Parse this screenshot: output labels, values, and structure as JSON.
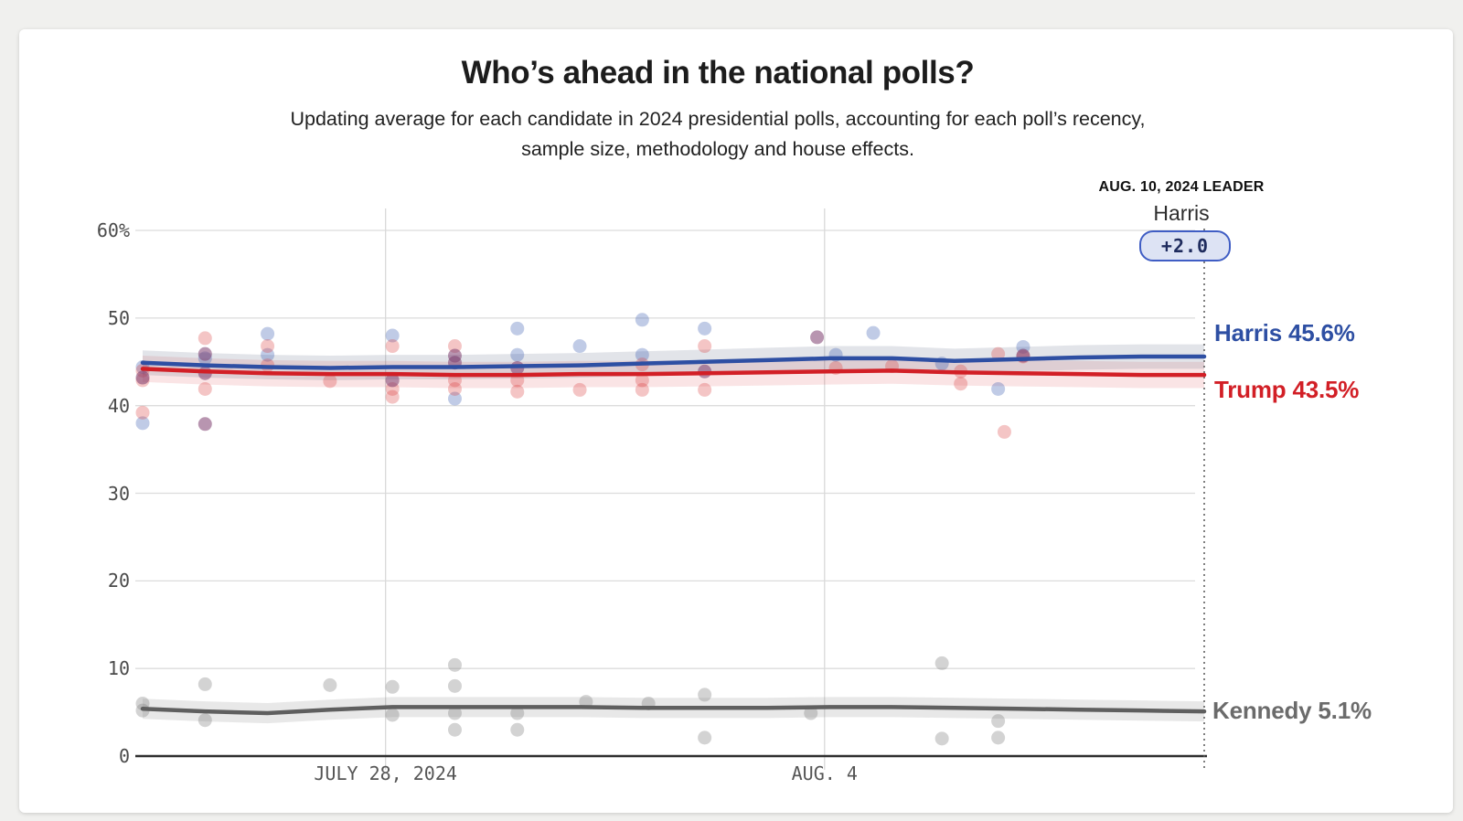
{
  "page": {
    "background_color": "#f0f0ee",
    "card_color": "#ffffff"
  },
  "header": {
    "title": "Who’s ahead in the national polls?",
    "subtitle": "Updating average for each candidate in 2024 presidential polls, accounting for each poll’s recency,\nsample size, methodology and house effects."
  },
  "leader": {
    "heading": "AUG. 10, 2024 LEADER",
    "name": "Harris",
    "margin_badge": "+2.0",
    "badge_border_color": "#3f5dc4",
    "badge_fill_color": "#dde3f4"
  },
  "chart_data": {
    "type": "line",
    "title": "Who’s ahead in the national polls?",
    "x_axis": {
      "start_date": "2024-07-24",
      "end_date": "2024-08-10",
      "days_span": 17,
      "tick_labels": [
        "JULY 28, 2024",
        "AUG. 4"
      ],
      "tick_days": [
        3.89,
        10.92
      ],
      "grid": true
    },
    "y_axis": {
      "unit": "%",
      "tick_labels": [
        "60%",
        "50",
        "40",
        "30",
        "20",
        "10",
        "0"
      ],
      "tick_values": [
        60,
        50,
        40,
        30,
        20,
        10,
        0
      ],
      "range": [
        0,
        62
      ],
      "grid": true
    },
    "annotation": {
      "dotted_line_day": 17,
      "dotted_line_date": "2024-08-10"
    },
    "series": [
      {
        "name": "Harris",
        "color": "#2e4fa3",
        "band_color": "rgba(96,106,134,0.18)",
        "band_delta": 1.4,
        "end_value": 45.6,
        "end_label": "Harris 45.6%",
        "days": [
          0,
          1,
          2,
          3,
          4,
          5,
          6,
          7,
          8,
          9,
          10,
          11,
          12,
          13,
          14,
          15,
          16,
          17
        ],
        "values": [
          44.9,
          44.6,
          44.4,
          44.3,
          44.4,
          44.4,
          44.5,
          44.6,
          44.8,
          45.0,
          45.2,
          45.4,
          45.4,
          45.1,
          45.3,
          45.5,
          45.6,
          45.6
        ]
      },
      {
        "name": "Trump",
        "color": "#d21f26",
        "band_color": "rgba(214,31,38,0.12)",
        "band_delta": 1.5,
        "end_value": 43.5,
        "end_label": "Trump 43.5%",
        "days": [
          0,
          1,
          2,
          3,
          4,
          5,
          6,
          7,
          8,
          9,
          10,
          11,
          12,
          13,
          14,
          15,
          16,
          17
        ],
        "values": [
          44.2,
          43.9,
          43.7,
          43.6,
          43.6,
          43.5,
          43.5,
          43.6,
          43.6,
          43.7,
          43.8,
          43.9,
          44.0,
          43.8,
          43.7,
          43.6,
          43.5,
          43.5
        ]
      },
      {
        "name": "Kennedy",
        "color": "#5f5f5f",
        "band_color": "rgba(110,110,110,0.16)",
        "band_delta": 1.15,
        "end_value": 5.1,
        "end_label": "Kennedy 5.1%",
        "days": [
          0,
          1,
          2,
          3,
          4,
          5,
          6,
          7,
          8,
          9,
          10,
          11,
          12,
          13,
          14,
          15,
          16,
          17
        ],
        "values": [
          5.4,
          5.1,
          4.9,
          5.3,
          5.6,
          5.6,
          5.6,
          5.6,
          5.5,
          5.5,
          5.5,
          5.6,
          5.6,
          5.5,
          5.4,
          5.3,
          5.2,
          5.1
        ]
      }
    ],
    "poll_scatter": {
      "blue": [
        [
          0,
          44.4
        ],
        [
          0,
          38.0
        ],
        [
          1,
          45.4
        ],
        [
          2,
          48.2
        ],
        [
          2,
          45.8
        ],
        [
          4,
          48.0
        ],
        [
          5,
          40.8
        ],
        [
          6,
          48.8
        ],
        [
          6,
          45.8
        ],
        [
          7,
          46.8
        ],
        [
          8,
          49.8
        ],
        [
          8,
          45.8
        ],
        [
          9,
          48.8
        ],
        [
          11.1,
          45.8
        ],
        [
          11.7,
          48.3
        ],
        [
          12.8,
          44.8
        ],
        [
          13.7,
          41.9
        ],
        [
          14.1,
          46.7
        ]
      ],
      "red": [
        [
          0,
          44.0
        ],
        [
          0,
          42.9
        ],
        [
          0,
          39.2
        ],
        [
          1,
          47.7
        ],
        [
          1,
          41.9
        ],
        [
          2,
          46.8
        ],
        [
          2,
          44.6
        ],
        [
          3,
          42.8
        ],
        [
          4,
          46.8
        ],
        [
          4,
          41.9
        ],
        [
          4,
          41.0
        ],
        [
          5,
          46.8
        ],
        [
          5,
          42.9
        ],
        [
          5,
          41.9
        ],
        [
          6,
          42.9
        ],
        [
          6,
          41.6
        ],
        [
          7,
          41.8
        ],
        [
          8,
          44.7
        ],
        [
          8,
          42.9
        ],
        [
          8,
          41.8
        ],
        [
          9,
          46.8
        ],
        [
          9,
          41.8
        ],
        [
          11.1,
          44.3
        ],
        [
          12,
          44.5
        ],
        [
          13.1,
          43.9
        ],
        [
          13.1,
          42.5
        ],
        [
          13.7,
          45.9
        ],
        [
          14.1,
          45.6
        ],
        [
          13.8,
          37.0
        ]
      ],
      "overlap": [
        [
          0,
          43.2
        ],
        [
          1,
          45.9
        ],
        [
          1,
          43.7
        ],
        [
          1,
          37.9
        ],
        [
          4,
          42.9
        ],
        [
          5,
          45.7
        ],
        [
          5,
          44.9
        ],
        [
          6,
          44.3
        ],
        [
          9,
          43.9
        ],
        [
          10.8,
          47.8
        ],
        [
          14.1,
          45.7
        ]
      ],
      "gray": [
        [
          0,
          6.0
        ],
        [
          0,
          5.2
        ],
        [
          1,
          8.2
        ],
        [
          1,
          4.1
        ],
        [
          3,
          8.1
        ],
        [
          4,
          7.9
        ],
        [
          4,
          4.7
        ],
        [
          5,
          10.4
        ],
        [
          5,
          8.0
        ],
        [
          5,
          4.9
        ],
        [
          5,
          3.0
        ],
        [
          6,
          4.9
        ],
        [
          6,
          3.0
        ],
        [
          7.1,
          6.2
        ],
        [
          8.1,
          6.0
        ],
        [
          9,
          7.0
        ],
        [
          9,
          2.1
        ],
        [
          10.7,
          4.9
        ],
        [
          12.8,
          10.6
        ],
        [
          12.8,
          2.0
        ],
        [
          13.7,
          4.0
        ],
        [
          13.7,
          2.1
        ]
      ]
    },
    "scatter_colors": {
      "blue": "rgba(59,92,177,0.32)",
      "red": "rgba(217,64,64,0.30)",
      "overlap": "rgba(125,62,112,0.55)",
      "gray": "rgba(130,130,130,0.35)"
    }
  }
}
